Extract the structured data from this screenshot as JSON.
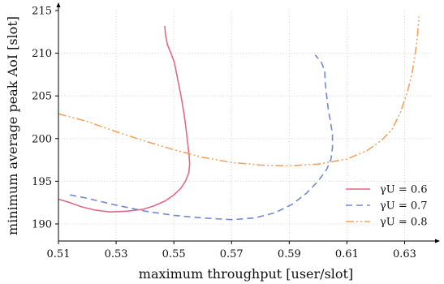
{
  "chart_data": {
    "type": "line",
    "xlabel": "maximum throughput [user/slot]",
    "ylabel": "minimum average peak AoI [slot]",
    "xlim": [
      0.51,
      0.64
    ],
    "ylim": [
      188,
      215
    ],
    "xticks": [
      0.51,
      0.53,
      0.55,
      0.57,
      0.59,
      0.61,
      0.63
    ],
    "xtick_labels": [
      "0.51",
      "0.53",
      "0.55",
      "0.57",
      "0.59",
      "0.61",
      "0.63"
    ],
    "yticks": [
      190,
      195,
      200,
      205,
      210,
      215
    ],
    "ytick_labels": [
      "190",
      "195",
      "200",
      "205",
      "210",
      "215"
    ],
    "grid": true,
    "legend_position": "bottom-right",
    "series": [
      {
        "name": "γU = 0.6",
        "color": "#e06a86",
        "dash": "solid",
        "points": [
          [
            0.5469,
            213.2
          ],
          [
            0.5471,
            212.2
          ],
          [
            0.5478,
            211.0
          ],
          [
            0.549,
            210.0
          ],
          [
            0.5502,
            208.9
          ],
          [
            0.5513,
            207.0
          ],
          [
            0.5525,
            205.0
          ],
          [
            0.5535,
            203.0
          ],
          [
            0.5543,
            201.0
          ],
          [
            0.5548,
            199.5
          ],
          [
            0.5553,
            198.0
          ],
          [
            0.5555,
            197.0
          ],
          [
            0.5552,
            196.0
          ],
          [
            0.554,
            195.0
          ],
          [
            0.5525,
            194.2
          ],
          [
            0.55,
            193.4
          ],
          [
            0.547,
            192.7
          ],
          [
            0.543,
            192.1
          ],
          [
            0.539,
            191.7
          ],
          [
            0.534,
            191.5
          ],
          [
            0.528,
            191.4
          ],
          [
            0.523,
            191.6
          ],
          [
            0.518,
            192.0
          ],
          [
            0.514,
            192.5
          ],
          [
            0.51,
            192.9
          ]
        ]
      },
      {
        "name": "γU = 0.7",
        "color": "#7289d0",
        "dash": "8 5",
        "points": [
          [
            0.514,
            193.4
          ],
          [
            0.52,
            193.0
          ],
          [
            0.53,
            192.2
          ],
          [
            0.54,
            191.5
          ],
          [
            0.55,
            191.0
          ],
          [
            0.56,
            190.7
          ],
          [
            0.57,
            190.5
          ],
          [
            0.578,
            190.7
          ],
          [
            0.585,
            191.3
          ],
          [
            0.591,
            192.3
          ],
          [
            0.596,
            193.6
          ],
          [
            0.6,
            195.0
          ],
          [
            0.603,
            196.4
          ],
          [
            0.6045,
            197.6
          ],
          [
            0.605,
            199.0
          ],
          [
            0.605,
            200.5
          ],
          [
            0.6043,
            202.0
          ],
          [
            0.6035,
            203.5
          ],
          [
            0.603,
            205.0
          ],
          [
            0.6025,
            206.5
          ],
          [
            0.6023,
            208.0
          ],
          [
            0.6012,
            208.9
          ],
          [
            0.5995,
            209.6
          ],
          [
            0.599,
            209.8
          ]
        ]
      },
      {
        "name": "γU = 0.8",
        "color": "#f2a45f",
        "dash": "10 3 2 3 2 3",
        "points": [
          [
            0.51,
            202.9
          ],
          [
            0.52,
            202.0
          ],
          [
            0.53,
            200.8
          ],
          [
            0.54,
            199.7
          ],
          [
            0.55,
            198.7
          ],
          [
            0.56,
            197.8
          ],
          [
            0.57,
            197.2
          ],
          [
            0.58,
            196.9
          ],
          [
            0.59,
            196.8
          ],
          [
            0.6,
            197.0
          ],
          [
            0.61,
            197.6
          ],
          [
            0.617,
            198.6
          ],
          [
            0.622,
            199.8
          ],
          [
            0.6255,
            201.0
          ],
          [
            0.6285,
            203.0
          ],
          [
            0.631,
            205.5
          ],
          [
            0.6325,
            207.5
          ],
          [
            0.6335,
            209.5
          ],
          [
            0.6343,
            211.5
          ],
          [
            0.6348,
            213.5
          ],
          [
            0.635,
            214.3
          ]
        ]
      }
    ]
  }
}
